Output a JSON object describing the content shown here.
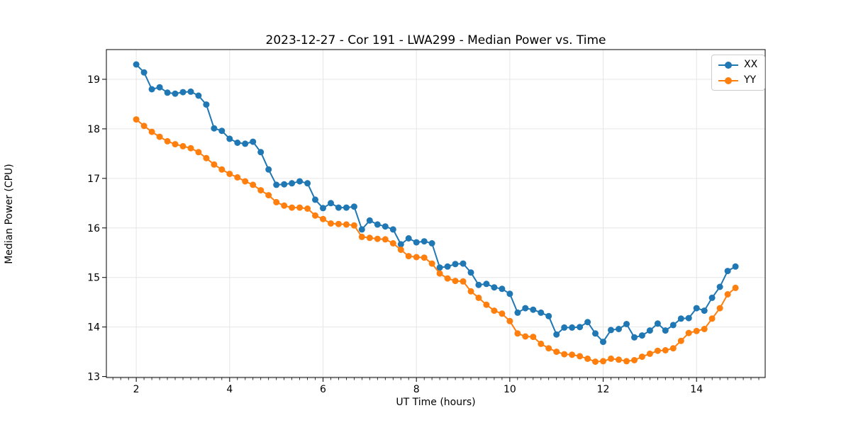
{
  "chart_data": {
    "type": "line",
    "title": "2023-12-27 - Cor 191 - LWA299 - Median Power vs. Time",
    "xlabel": "UT Time (hours)",
    "ylabel": "Median Power (CPU)",
    "grid": true,
    "legend_position": "upper right",
    "xlim": [
      1.36,
      15.47
    ],
    "ylim": [
      12.98,
      19.6
    ],
    "x_major_ticks": [
      2,
      4,
      6,
      8,
      10,
      12,
      14
    ],
    "y_major_ticks": [
      13,
      14,
      15,
      16,
      17,
      18,
      19
    ],
    "x_minor_tick_step": 0.16667,
    "grid_color": "#e6e6e6",
    "axis_color": "#000000",
    "x": [
      2.0,
      2.167,
      2.333,
      2.5,
      2.667,
      2.833,
      3.0,
      3.167,
      3.333,
      3.5,
      3.667,
      3.833,
      4.0,
      4.167,
      4.333,
      4.5,
      4.667,
      4.833,
      5.0,
      5.167,
      5.333,
      5.5,
      5.667,
      5.833,
      6.0,
      6.167,
      6.333,
      6.5,
      6.667,
      6.833,
      7.0,
      7.167,
      7.333,
      7.5,
      7.667,
      7.833,
      8.0,
      8.167,
      8.333,
      8.5,
      8.667,
      8.833,
      9.0,
      9.167,
      9.333,
      9.5,
      9.667,
      9.833,
      10.0,
      10.167,
      10.333,
      10.5,
      10.667,
      10.833,
      11.0,
      11.167,
      11.333,
      11.5,
      11.667,
      11.833,
      12.0,
      12.167,
      12.333,
      12.5,
      12.667,
      12.833,
      13.0,
      13.167,
      13.333,
      13.5,
      13.667,
      13.833,
      14.0,
      14.167,
      14.333,
      14.5,
      14.667,
      14.833
    ],
    "series": [
      {
        "name": "XX",
        "color": "#1f77b4",
        "values": [
          19.3,
          19.14,
          18.8,
          18.84,
          18.73,
          18.71,
          18.74,
          18.75,
          18.67,
          18.49,
          18.01,
          17.96,
          17.8,
          17.72,
          17.7,
          17.74,
          17.53,
          17.18,
          16.87,
          16.88,
          16.9,
          16.94,
          16.9,
          16.57,
          16.4,
          16.5,
          16.41,
          16.41,
          16.43,
          15.97,
          16.15,
          16.07,
          16.03,
          15.97,
          15.67,
          15.79,
          15.71,
          15.73,
          15.69,
          15.2,
          15.22,
          15.27,
          15.28,
          15.1,
          14.85,
          14.87,
          14.8,
          14.77,
          14.67,
          14.29,
          14.38,
          14.35,
          14.29,
          14.22,
          13.85,
          13.99,
          13.99,
          14.0,
          14.1,
          13.87,
          13.7,
          13.94,
          13.96,
          14.06,
          13.79,
          13.83,
          13.93,
          14.07,
          13.93,
          14.04,
          14.17,
          14.18,
          14.38,
          14.33,
          14.59,
          14.81,
          15.13,
          15.22
        ]
      },
      {
        "name": "YY",
        "color": "#ff7f0e",
        "values": [
          18.19,
          18.06,
          17.94,
          17.84,
          17.75,
          17.69,
          17.65,
          17.61,
          17.53,
          17.41,
          17.28,
          17.18,
          17.09,
          17.02,
          16.94,
          16.87,
          16.76,
          16.66,
          16.52,
          16.45,
          16.41,
          16.41,
          16.39,
          16.25,
          16.18,
          16.09,
          16.08,
          16.07,
          16.05,
          15.82,
          15.8,
          15.78,
          15.77,
          15.69,
          15.56,
          15.43,
          15.41,
          15.4,
          15.28,
          15.08,
          14.98,
          14.93,
          14.92,
          14.72,
          14.59,
          14.45,
          14.33,
          14.27,
          14.12,
          13.87,
          13.81,
          13.8,
          13.66,
          13.57,
          13.5,
          13.45,
          13.44,
          13.41,
          13.36,
          13.3,
          13.31,
          13.36,
          13.34,
          13.31,
          13.33,
          13.4,
          13.46,
          13.52,
          13.53,
          13.57,
          13.72,
          13.88,
          13.92,
          13.96,
          14.17,
          14.38,
          14.66,
          14.79
        ]
      }
    ]
  }
}
